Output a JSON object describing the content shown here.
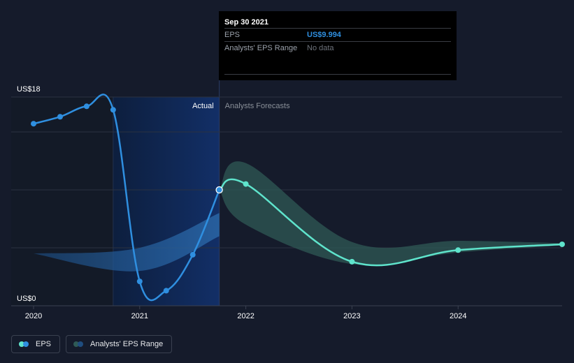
{
  "tooltip": {
    "date": "Sep 30 2021",
    "rows": [
      {
        "label": "EPS",
        "value": "US$9.994"
      },
      {
        "label": "Analysts' EPS Range",
        "value": "No data"
      }
    ]
  },
  "legend": {
    "eps_label": "EPS",
    "range_label": "Analysts' EPS Range"
  },
  "colors": {
    "background": "#151b2b",
    "eps_line": "#2f8fe0",
    "forecast_line": "#5fe4cc",
    "forecast_range": "#2f5a56",
    "actual_shade": "#0f2a55"
  },
  "chart_data": {
    "type": "line",
    "y_axis_labels": [
      "US$18",
      "US$0"
    ],
    "ylim": [
      0,
      18
    ],
    "xlim": [
      2020,
      2024.98
    ],
    "x_ticks": [
      2020,
      2021,
      2022,
      2023,
      2024
    ],
    "region_labels": {
      "actual": "Actual",
      "forecast": "Analysts Forecasts"
    },
    "actual_end": 2021.75,
    "grid": true,
    "series": [
      {
        "name": "EPS",
        "points": [
          {
            "x": 2020.0,
            "y": 15.7
          },
          {
            "x": 2020.25,
            "y": 16.3
          },
          {
            "x": 2020.5,
            "y": 17.2
          },
          {
            "x": 2020.75,
            "y": 16.9
          },
          {
            "x": 2021.0,
            "y": 2.1
          },
          {
            "x": 2021.25,
            "y": 1.3
          },
          {
            "x": 2021.5,
            "y": 4.4
          },
          {
            "x": 2021.75,
            "y": 9.994
          }
        ]
      },
      {
        "name": "EPS Forecast",
        "points": [
          {
            "x": 2021.75,
            "y": 9.994
          },
          {
            "x": 2022.0,
            "y": 10.5
          },
          {
            "x": 2023.0,
            "y": 3.8
          },
          {
            "x": 2024.0,
            "y": 4.8
          },
          {
            "x": 2024.98,
            "y": 5.3
          }
        ]
      }
    ],
    "range": {
      "name": "Analysts' EPS Range",
      "upper": [
        {
          "x": 2021.75,
          "y": 10.0
        },
        {
          "x": 2022.0,
          "y": 12.3
        },
        {
          "x": 2023.0,
          "y": 5.5
        },
        {
          "x": 2024.0,
          "y": 5.6
        },
        {
          "x": 2024.98,
          "y": 5.4
        }
      ],
      "lower": [
        {
          "x": 2021.75,
          "y": 10.0
        },
        {
          "x": 2022.0,
          "y": 7.0
        },
        {
          "x": 2023.0,
          "y": 3.6
        },
        {
          "x": 2024.0,
          "y": 4.6
        },
        {
          "x": 2024.98,
          "y": 5.2
        }
      ]
    },
    "past_range": {
      "upper": [
        {
          "x": 2020.0,
          "y": 4.5
        },
        {
          "x": 2021.0,
          "y": 5.0
        },
        {
          "x": 2021.75,
          "y": 8.0
        }
      ],
      "lower": [
        {
          "x": 2020.0,
          "y": 4.5
        },
        {
          "x": 2021.0,
          "y": 3.0
        },
        {
          "x": 2021.75,
          "y": 6.0
        }
      ]
    }
  }
}
